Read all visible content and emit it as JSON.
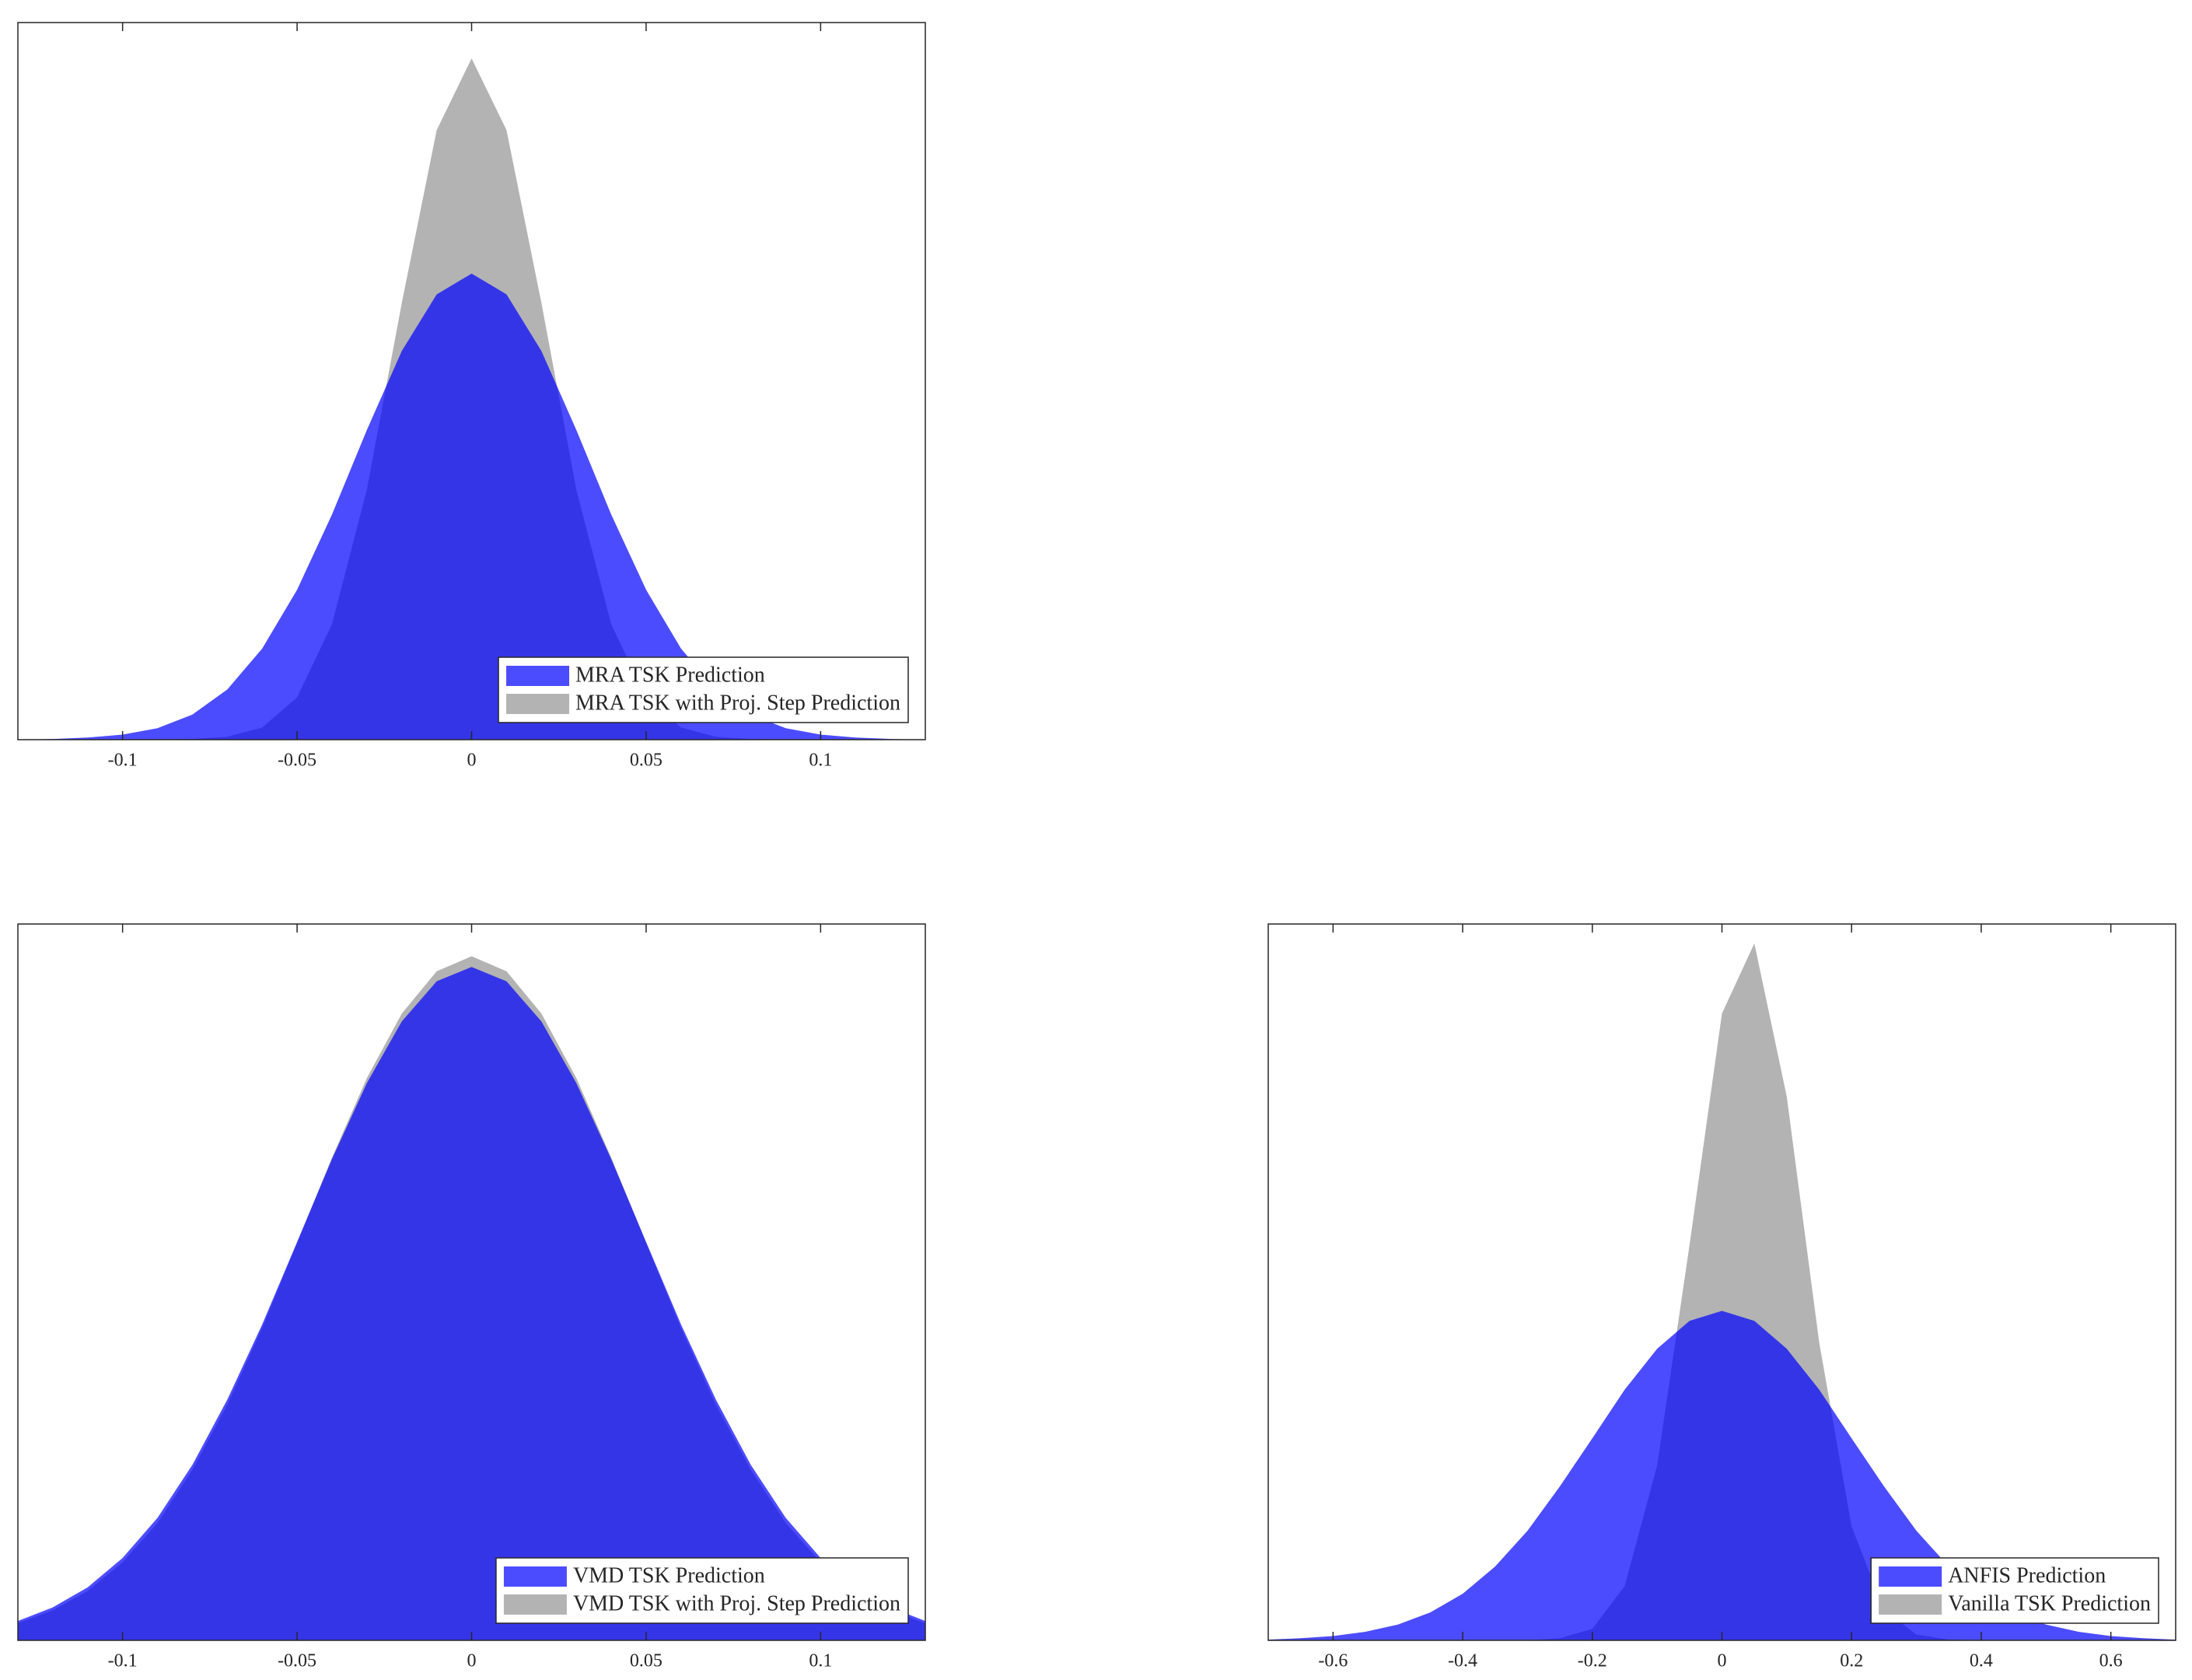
{
  "chart_data": [
    {
      "type": "area",
      "legend": "lower right",
      "ylim": [
        0,
        1
      ],
      "xlim": [
        -0.13,
        0.13
      ],
      "xticks": [
        -0.1,
        -0.05,
        0,
        0.05,
        0.1
      ],
      "x": [
        -0.13,
        -0.12,
        -0.11,
        -0.1,
        -0.09,
        -0.08,
        -0.07,
        -0.06,
        -0.05,
        -0.04,
        -0.03,
        -0.02,
        -0.01,
        0,
        0.01,
        0.02,
        0.03,
        0.04,
        0.05,
        0.06,
        0.07,
        0.08,
        0.09,
        0.1,
        0.11,
        0.12,
        0.13
      ],
      "series": [
        {
          "name": "MRA TSK Prediction",
          "color": "#0000ff",
          "alpha": 0.7,
          "values": [
            0,
            0.001,
            0.003,
            0.007,
            0.016,
            0.035,
            0.07,
            0.127,
            0.209,
            0.314,
            0.432,
            0.542,
            0.621,
            0.65,
            0.621,
            0.542,
            0.432,
            0.314,
            0.209,
            0.127,
            0.07,
            0.035,
            0.016,
            0.007,
            0.003,
            0.001,
            0
          ]
        },
        {
          "name": "MRA TSK with Proj. Step Prediction",
          "color": "#b3b3b3",
          "alpha": 1,
          "values": [
            0,
            0,
            0,
            0,
            0,
            0.001,
            0.004,
            0.017,
            0.059,
            0.161,
            0.349,
            0.609,
            0.85,
            0.95,
            0.85,
            0.609,
            0.349,
            0.161,
            0.059,
            0.017,
            0.004,
            0.001,
            0,
            0,
            0,
            0,
            0
          ]
        }
      ]
    },
    {
      "type": "area",
      "legend": "lower right",
      "ylim": [
        0,
        1
      ],
      "xlim": [
        -0.13,
        0.13
      ],
      "xticks": [
        -0.1,
        -0.05,
        0,
        0.05,
        0.1
      ],
      "x": [
        -0.13,
        -0.12,
        -0.11,
        -0.1,
        -0.09,
        -0.08,
        -0.07,
        -0.06,
        -0.05,
        -0.04,
        -0.03,
        -0.02,
        -0.01,
        0,
        0.01,
        0.02,
        0.03,
        0.04,
        0.05,
        0.06,
        0.07,
        0.08,
        0.09,
        0.1,
        0.11,
        0.12,
        0.13
      ],
      "series": [
        {
          "name": "VMD TSK Prediction",
          "color": "#0000ff",
          "alpha": 0.7,
          "values": [
            0.027,
            0.046,
            0.074,
            0.115,
            0.171,
            0.245,
            0.336,
            0.441,
            0.556,
            0.672,
            0.778,
            0.864,
            0.92,
            0.94,
            0.92,
            0.864,
            0.778,
            0.672,
            0.556,
            0.441,
            0.336,
            0.245,
            0.171,
            0.115,
            0.074,
            0.046,
            0.027
          ]
        },
        {
          "name": "VMD TSK with Proj. Step Prediction",
          "color": "#b3b3b3",
          "alpha": 1,
          "values": [
            0.024,
            0.042,
            0.069,
            0.109,
            0.164,
            0.238,
            0.329,
            0.436,
            0.555,
            0.674,
            0.785,
            0.875,
            0.934,
            0.955,
            0.934,
            0.875,
            0.785,
            0.674,
            0.555,
            0.436,
            0.329,
            0.238,
            0.164,
            0.109,
            0.069,
            0.042,
            0.024
          ]
        }
      ]
    },
    {
      "type": "area",
      "legend": "lower right",
      "ylim": [
        0,
        1
      ],
      "xlim": [
        -0.7,
        0.7
      ],
      "xticks": [
        -0.6,
        -0.4,
        -0.2,
        0,
        0.2,
        0.4,
        0.6
      ],
      "x": [
        -0.7,
        -0.65,
        -0.6,
        -0.55,
        -0.5,
        -0.45,
        -0.4,
        -0.35,
        -0.3,
        -0.25,
        -0.2,
        -0.15,
        -0.1,
        -0.05,
        0,
        0.05,
        0.1,
        0.15,
        0.2,
        0.25,
        0.3,
        0.35,
        0.4,
        0.45,
        0.5,
        0.55,
        0.6,
        0.65,
        0.7
      ],
      "series": [
        {
          "name": "ANFIS Prediction",
          "color": "#0000ff",
          "alpha": 0.7,
          "values": [
            0.001,
            0.003,
            0.006,
            0.012,
            0.022,
            0.039,
            0.065,
            0.103,
            0.153,
            0.215,
            0.282,
            0.35,
            0.407,
            0.446,
            0.46,
            0.446,
            0.407,
            0.35,
            0.282,
            0.215,
            0.153,
            0.103,
            0.065,
            0.039,
            0.022,
            0.012,
            0.006,
            0.003,
            0.001
          ]
        },
        {
          "name": "Vanilla TSK Prediction",
          "color": "#b3b3b3",
          "alpha": 1,
          "values": [
            0,
            0,
            0,
            0,
            0,
            0,
            0,
            0,
            0,
            0.003,
            0.016,
            0.076,
            0.244,
            0.552,
            0.875,
            0.973,
            0.759,
            0.416,
            0.159,
            0.043,
            0.008,
            0.001,
            0,
            0,
            0,
            0,
            0,
            0,
            0
          ]
        }
      ]
    }
  ]
}
